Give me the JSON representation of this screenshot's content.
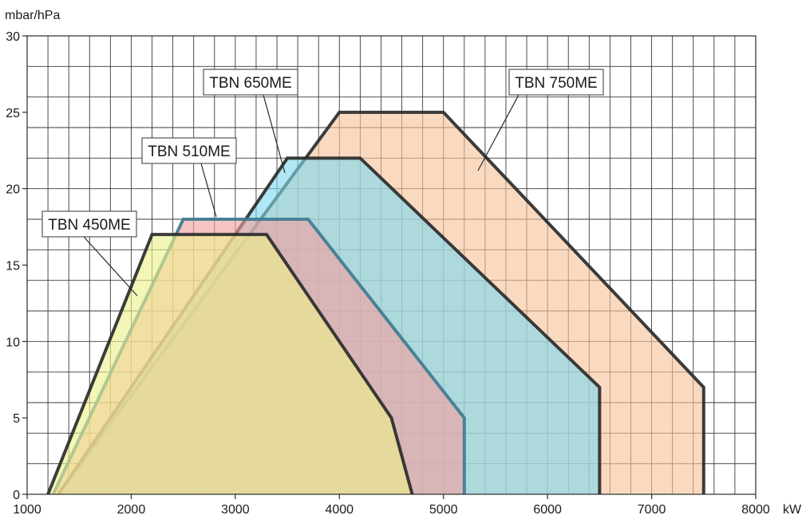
{
  "chart_data": {
    "type": "area",
    "title": "",
    "xlabel": "kW",
    "ylabel": "mbar/hPa",
    "xlim": [
      1000,
      8000
    ],
    "ylim": [
      0,
      30
    ],
    "x_ticks": [
      1000,
      2000,
      3000,
      4000,
      5000,
      6000,
      7000,
      8000
    ],
    "y_ticks": [
      0,
      5,
      10,
      15,
      20,
      25,
      30
    ],
    "x_tick_labels": [
      "1000",
      "2000",
      "3000",
      "4000",
      "5000",
      "6000",
      "7000",
      "8000"
    ],
    "y_tick_labels": [
      "0",
      "5",
      "10",
      "15",
      "20",
      "25",
      "30"
    ],
    "grid": true,
    "minor_grid_x_step": 200,
    "minor_grid_y_step": 2,
    "series": [
      {
        "name": "TBN 750ME",
        "fill": "#f5c39a",
        "stroke": "#2b2b2b",
        "points": [
          [
            1300,
            0
          ],
          [
            4000,
            25
          ],
          [
            5000,
            25
          ],
          [
            7500,
            7
          ],
          [
            7500,
            0
          ]
        ]
      },
      {
        "name": "TBN 650ME",
        "fill": "#7fd8ee",
        "stroke": "#2b2b2b",
        "points": [
          [
            1300,
            0
          ],
          [
            3500,
            22
          ],
          [
            4200,
            22
          ],
          [
            6500,
            7
          ],
          [
            6500,
            0
          ]
        ]
      },
      {
        "name": "TBN 510ME",
        "fill": "#f2a0a0",
        "stroke": "#3e7c92",
        "points": [
          [
            1250,
            0
          ],
          [
            2500,
            18
          ],
          [
            3700,
            18
          ],
          [
            5200,
            5
          ],
          [
            5200,
            0
          ]
        ]
      },
      {
        "name": "TBN 450ME",
        "fill": "#eef08a",
        "stroke": "#2b2b2b",
        "points": [
          [
            1200,
            0
          ],
          [
            2200,
            17
          ],
          [
            3300,
            17
          ],
          [
            4500,
            5
          ],
          [
            4700,
            0
          ]
        ]
      }
    ],
    "callouts": [
      {
        "text": "TBN 450ME",
        "series": "TBN 450ME"
      },
      {
        "text": "TBN 510ME",
        "series": "TBN 510ME"
      },
      {
        "text": "TBN 650ME",
        "series": "TBN 650ME"
      },
      {
        "text": "TBN 750ME",
        "series": "TBN 750ME"
      }
    ]
  }
}
